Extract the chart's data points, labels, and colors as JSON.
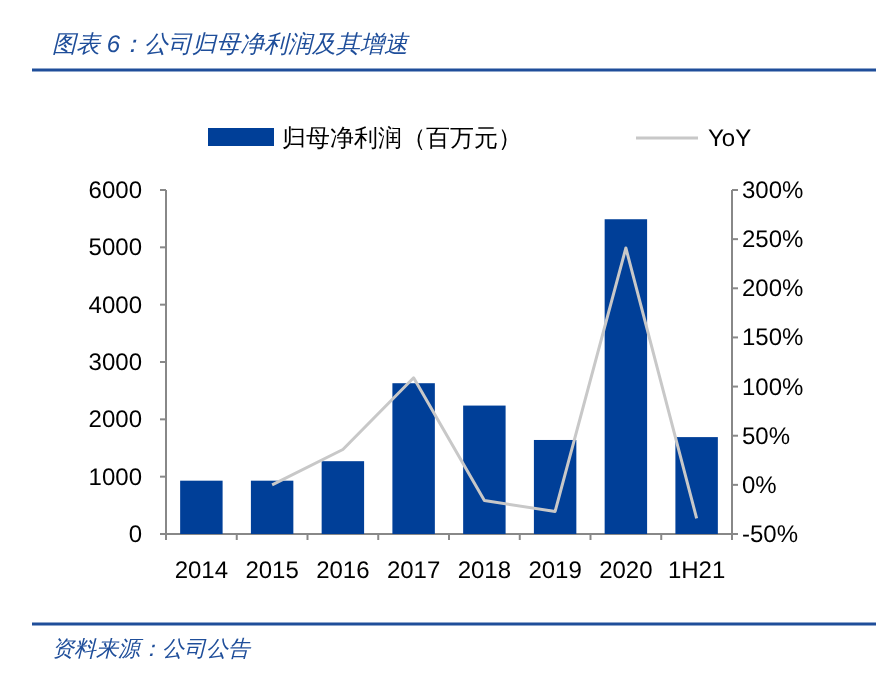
{
  "chart_data": {
    "type": "bar",
    "title": "图表 6：公司归母净利润及其增速",
    "categories": [
      "2014",
      "2015",
      "2016",
      "2017",
      "2018",
      "2019",
      "2020",
      "1H21"
    ],
    "series": [
      {
        "name": "归母净利润（百万元）",
        "color": "#003f98",
        "values": [
          930,
          930,
          1270,
          2630,
          2240,
          1640,
          5490,
          1690
        ]
      },
      {
        "name": "YoY",
        "type": "line",
        "axis": "y2",
        "color": "#c8c8c8",
        "values": [
          null,
          0,
          36,
          109,
          -16,
          -27,
          241,
          -34
        ]
      }
    ],
    "ylim": [
      0,
      6000
    ],
    "yticks": [
      0,
      1000,
      2000,
      3000,
      4000,
      5000,
      6000
    ],
    "y2lim": [
      -50,
      300
    ],
    "y2ticks": [
      {
        "value": -50,
        "label": "-50%"
      },
      {
        "value": 0,
        "label": "0%"
      },
      {
        "value": 50,
        "label": "50%"
      },
      {
        "value": 100,
        "label": "100%"
      },
      {
        "value": 150,
        "label": "150%"
      },
      {
        "value": 200,
        "label": "200%"
      },
      {
        "value": 250,
        "label": "250%"
      },
      {
        "value": 300,
        "label": "300%"
      }
    ],
    "legend": "top",
    "grid": false,
    "annotations": [
      "资料来源：公司公告"
    ]
  }
}
